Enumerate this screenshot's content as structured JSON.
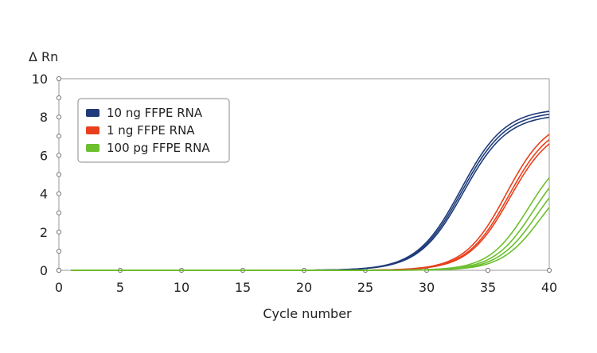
{
  "chart_data": {
    "type": "line",
    "title": "",
    "xlabel": "Cycle number",
    "ylabel": "Δ Rn",
    "xlim": [
      0,
      40
    ],
    "ylim": [
      0,
      10
    ],
    "x_ticks": [
      0,
      5,
      10,
      15,
      20,
      25,
      30,
      35,
      40
    ],
    "y_ticks": [
      0,
      2,
      4,
      6,
      8,
      10
    ],
    "grid": false,
    "legend_position": "top-left",
    "series": [
      {
        "name": "10 ng FFPE RNA",
        "color": "#1f3c7a",
        "curves": [
          {
            "plateau": 8.45,
            "midpoint": 32.8,
            "slope": 1.8
          },
          {
            "plateau": 8.3,
            "midpoint": 32.9,
            "slope": 1.8
          },
          {
            "plateau": 8.15,
            "midpoint": 33.0,
            "slope": 1.8
          }
        ]
      },
      {
        "name": "1 ng FFPE RNA",
        "color": "#e8401c",
        "curves": [
          {
            "plateau": 8.0,
            "midpoint": 36.5,
            "slope": 1.7
          },
          {
            "plateau": 7.8,
            "midpoint": 36.7,
            "slope": 1.7
          },
          {
            "plateau": 7.6,
            "midpoint": 36.8,
            "slope": 1.7
          }
        ]
      },
      {
        "name": "100 pg FFPE RNA",
        "color": "#6cbf2e",
        "curves": [
          {
            "plateau": 6.5,
            "midpoint": 38.3,
            "slope": 1.6
          },
          {
            "plateau": 6.2,
            "midpoint": 38.7,
            "slope": 1.6
          },
          {
            "plateau": 5.8,
            "midpoint": 39.0,
            "slope": 1.6
          },
          {
            "plateau": 5.4,
            "midpoint": 39.3,
            "slope": 1.6
          }
        ]
      }
    ]
  }
}
